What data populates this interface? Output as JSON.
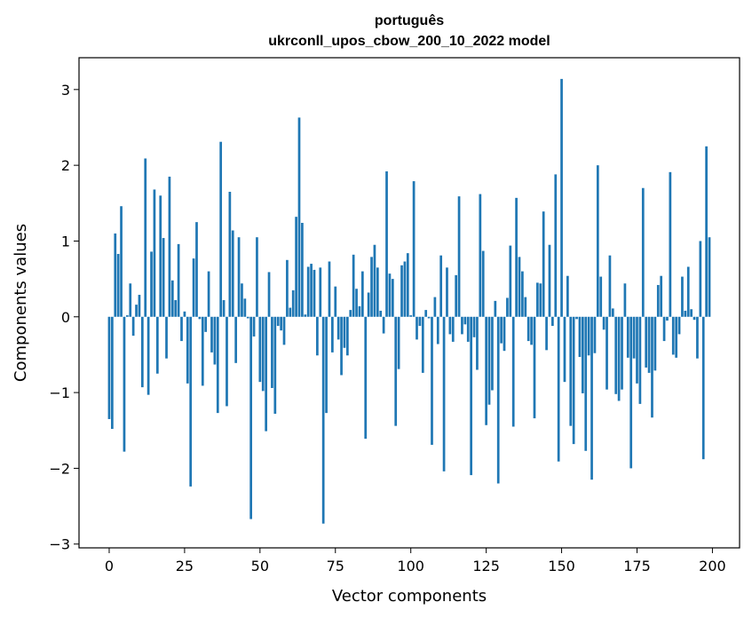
{
  "chart_data": {
    "type": "bar",
    "title_line1": "português",
    "title_line2": "ukrconll_upos_cbow_200_10_2022 model",
    "xlabel": "Vector components",
    "ylabel": "Components values",
    "xlim": [
      -10,
      209
    ],
    "ylim": [
      -3.05,
      3.42
    ],
    "x_ticks": [
      0,
      25,
      50,
      75,
      100,
      125,
      150,
      175,
      200
    ],
    "y_ticks": [
      -3,
      -2,
      -1,
      0,
      1,
      2,
      3
    ],
    "bar_color": "#1f77b4",
    "values": [
      -1.35,
      -1.48,
      1.1,
      0.83,
      1.46,
      -1.78,
      0.02,
      0.44,
      -0.25,
      0.16,
      0.29,
      -0.93,
      2.09,
      -1.03,
      0.86,
      1.68,
      -0.75,
      1.6,
      1.04,
      -0.55,
      1.85,
      0.48,
      0.22,
      0.96,
      -0.32,
      0.07,
      -0.88,
      -2.24,
      0.77,
      1.25,
      -0.03,
      -0.91,
      -0.2,
      0.6,
      -0.47,
      -0.63,
      -1.27,
      2.31,
      0.22,
      -1.18,
      1.65,
      1.14,
      -0.61,
      1.05,
      0.44,
      0.24,
      -0.02,
      -2.67,
      -0.26,
      1.05,
      -0.86,
      -0.98,
      -1.51,
      0.59,
      -0.94,
      -1.28,
      -0.12,
      -0.18,
      -0.37,
      0.75,
      0.12,
      0.35,
      1.32,
      2.63,
      1.24,
      0.03,
      0.66,
      0.7,
      0.62,
      -0.51,
      0.65,
      -2.73,
      -1.27,
      0.73,
      -0.47,
      0.4,
      -0.3,
      -0.77,
      -0.41,
      -0.51,
      0.09,
      0.82,
      0.37,
      0.14,
      0.6,
      -1.61,
      0.32,
      0.79,
      0.95,
      0.65,
      0.08,
      -0.22,
      1.92,
      0.57,
      0.5,
      -1.44,
      -0.69,
      0.68,
      0.73,
      0.84,
      0.02,
      1.79,
      -0.3,
      -0.12,
      -0.74,
      0.09,
      -0.02,
      -1.69,
      0.26,
      -0.36,
      0.81,
      -2.04,
      0.65,
      -0.23,
      -0.33,
      0.55,
      1.59,
      -0.23,
      -0.1,
      -0.33,
      -2.09,
      -0.27,
      -0.7,
      1.62,
      0.87,
      -1.43,
      -1.16,
      -0.97,
      0.21,
      -2.2,
      -0.35,
      -0.45,
      0.25,
      0.94,
      -1.45,
      1.57,
      0.79,
      0.6,
      0.26,
      -0.32,
      -0.37,
      -1.34,
      0.45,
      0.44,
      1.39,
      -0.44,
      0.95,
      -0.12,
      1.88,
      -1.91,
      3.14,
      -0.86,
      0.54,
      -1.44,
      -1.68,
      -0.03,
      -0.53,
      -1.01,
      -1.77,
      -0.51,
      -2.15,
      -0.48,
      2.0,
      0.53,
      -0.17,
      -0.96,
      0.81,
      0.11,
      -1.02,
      -1.11,
      -0.96,
      0.44,
      -0.54,
      -2.0,
      -0.55,
      -0.88,
      -1.15,
      1.7,
      -0.67,
      -0.74,
      -1.33,
      -0.71,
      0.42,
      0.54,
      -0.32,
      -0.05,
      1.91,
      -0.5,
      -0.54,
      -0.23,
      0.53,
      0.08,
      0.66,
      0.1,
      -0.04,
      -0.55,
      1.0,
      -1.88,
      2.25,
      1.05
    ]
  }
}
